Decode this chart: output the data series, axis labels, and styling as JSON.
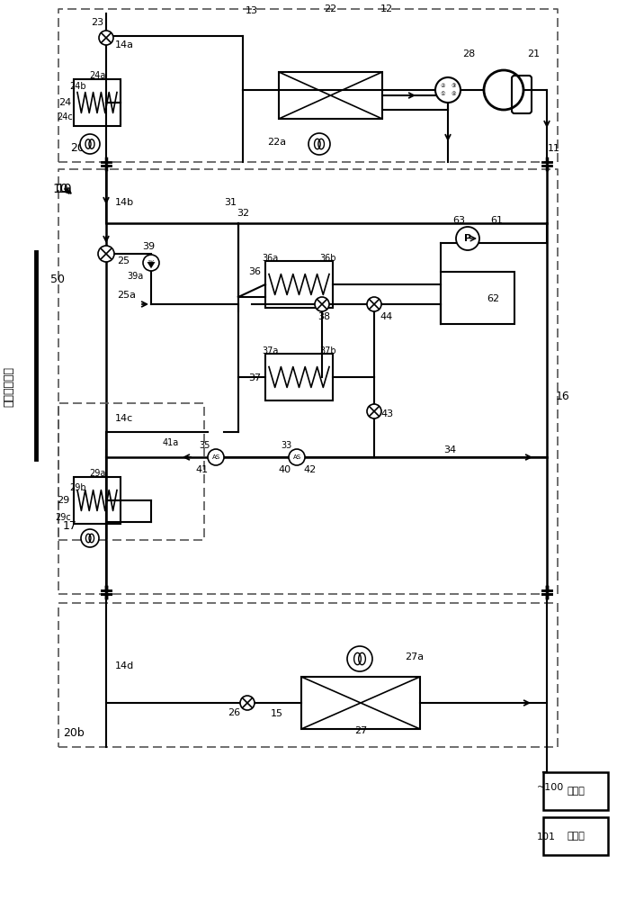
{
  "bg_color": "#ffffff",
  "line_color": "#000000",
  "dashed_color": "#555555",
  "fig_width": 6.86,
  "fig_height": 10.0,
  "vertical_text": "单纯制冷运转",
  "ctrl_text": "控制器",
  "recv_text": "接收部"
}
